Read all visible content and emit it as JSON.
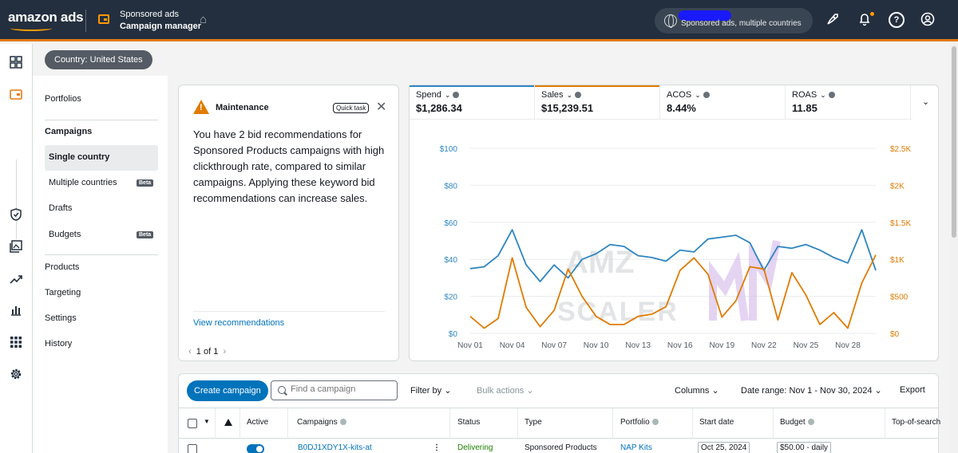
{
  "header": {
    "logo": "amazon ads",
    "product": "Sponsored ads",
    "page": "Campaign manager",
    "account_subtitle": "Sponsored ads, multiple countries",
    "icons": [
      "home-icon",
      "globe-icon",
      "rocket-icon",
      "bell-icon",
      "help-icon",
      "account-icon"
    ],
    "accent_color": "#e47911"
  },
  "country_filter": "Country: United States",
  "sidebar": {
    "items": [
      {
        "label": "Portfolios"
      },
      {
        "label": "Campaigns"
      },
      {
        "label": "Single country"
      },
      {
        "label": "Multiple countries",
        "badge": "Beta"
      },
      {
        "label": "Drafts"
      },
      {
        "label": "Budgets",
        "badge": "Beta"
      },
      {
        "label": "Products"
      },
      {
        "label": "Targeting"
      },
      {
        "label": "Settings"
      },
      {
        "label": "History"
      }
    ]
  },
  "maintenance": {
    "title": "Maintenance",
    "tag": "Quick task",
    "body": "You have 2 bid recommendations for Sponsored Products campaigns with high clickthrough rate, compared to similar campaigns. Applying these keyword bid recommendations can increase sales.",
    "link": "View recommendations",
    "pager": "1 of 1"
  },
  "metrics": [
    {
      "label": "Spend",
      "value": "$1,286.34",
      "color": "#2e86c1"
    },
    {
      "label": "Sales",
      "value": "$15,239.51",
      "color": "#e07b00"
    },
    {
      "label": "ACOS",
      "value": "8.44%",
      "color": ""
    },
    {
      "label": "ROAS",
      "value": "11.85",
      "color": ""
    }
  ],
  "chart_data": {
    "type": "line",
    "x": [
      "Nov 01",
      "Nov 02",
      "Nov 03",
      "Nov 04",
      "Nov 05",
      "Nov 06",
      "Nov 07",
      "Nov 08",
      "Nov 09",
      "Nov 10",
      "Nov 11",
      "Nov 12",
      "Nov 13",
      "Nov 14",
      "Nov 15",
      "Nov 16",
      "Nov 17",
      "Nov 18",
      "Nov 19",
      "Nov 20",
      "Nov 21",
      "Nov 22",
      "Nov 23",
      "Nov 24",
      "Nov 25",
      "Nov 26",
      "Nov 27",
      "Nov 28",
      "Nov 29",
      "Nov 30"
    ],
    "x_tick_labels": [
      "Nov 01",
      "Nov 04",
      "Nov 07",
      "Nov 10",
      "Nov 13",
      "Nov 16",
      "Nov 19",
      "Nov 22",
      "Nov 25",
      "Nov 28"
    ],
    "y_left": {
      "ticks": [
        "$0",
        "$20",
        "$40",
        "$60",
        "$80",
        "$100"
      ],
      "range": [
        0,
        100
      ]
    },
    "y_right": {
      "ticks": [
        "$0",
        "$500",
        "$1K",
        "$1.5K",
        "$2K",
        "$2.5K"
      ],
      "range": [
        0,
        2500
      ]
    },
    "series": [
      {
        "name": "Spend",
        "axis": "left",
        "color": "#2e86c1",
        "values": [
          35,
          36,
          42,
          56,
          37,
          28,
          37,
          30,
          40,
          43,
          48,
          47,
          42,
          41,
          39,
          45,
          44,
          51,
          52,
          53,
          49,
          34,
          47,
          46,
          48,
          45,
          41,
          38,
          56,
          34
        ]
      },
      {
        "name": "Sales",
        "axis": "right",
        "color": "#e07b00",
        "values": [
          230,
          70,
          200,
          1020,
          350,
          90,
          310,
          870,
          500,
          230,
          120,
          120,
          230,
          260,
          360,
          850,
          1020,
          800,
          220,
          440,
          900,
          870,
          180,
          820,
          520,
          120,
          280,
          70,
          680,
          1060
        ]
      }
    ],
    "watermark": [
      "AMZ",
      "SCALER"
    ]
  },
  "toolbar": {
    "create_label": "Create campaign",
    "search_placeholder": "Find a campaign",
    "filter_label": "Filter by",
    "bulk_label": "Bulk actions",
    "columns_label": "Columns",
    "date_range": "Date range: Nov 1 - Nov 30, 2024",
    "export_label": "Export"
  },
  "table": {
    "headers": [
      "Active",
      "Campaigns",
      "Status",
      "Type",
      "Portfolio",
      "Start date",
      "Budget",
      "Top-of-search"
    ],
    "rows": [
      {
        "campaign": "B0DJ1XDY1X-kits-at",
        "status": "Delivering",
        "type": "Sponsored Products",
        "portfolio": "NAP Kits",
        "start_date": "Oct 25, 2024",
        "budget": "$50.00 - daily"
      }
    ]
  }
}
